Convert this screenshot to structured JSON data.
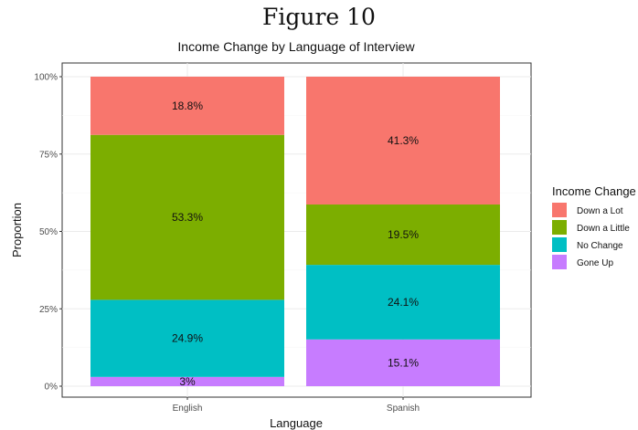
{
  "figure_heading": "Figure 10",
  "chart_data": {
    "type": "bar",
    "stacked": true,
    "title": "Income Change by Language of Interview",
    "xlabel": "Language",
    "ylabel": "Proportion",
    "categories": [
      "English",
      "Spanish"
    ],
    "ylim": [
      0,
      1
    ],
    "y_ticks": [
      0,
      0.25,
      0.5,
      0.75,
      1.0
    ],
    "y_tick_labels": [
      "0%",
      "25%",
      "50%",
      "75%",
      "100%"
    ],
    "grid": true,
    "legend": {
      "title": "Income Change",
      "placement": "right",
      "entries": [
        "Down a Lot",
        "Down a Little",
        "No Change",
        "Gone Up"
      ]
    },
    "series": [
      {
        "name": "Gone Up",
        "color": "#C77CFF",
        "values": [
          0.03,
          0.151
        ],
        "labels": [
          "3%",
          "15.1%"
        ]
      },
      {
        "name": "No Change",
        "color": "#00BFC4",
        "values": [
          0.249,
          0.241
        ],
        "labels": [
          "24.9%",
          "24.1%"
        ]
      },
      {
        "name": "Down a Little",
        "color": "#7CAE00",
        "values": [
          0.533,
          0.195
        ],
        "labels": [
          "53.3%",
          "19.5%"
        ]
      },
      {
        "name": "Down a Lot",
        "color": "#F8766D",
        "values": [
          0.188,
          0.413
        ],
        "labels": [
          "18.8%",
          "41.3%"
        ]
      }
    ],
    "legend_colors": {
      "Down a Lot": "#F8766D",
      "Down a Little": "#7CAE00",
      "No Change": "#00BFC4",
      "Gone Up": "#C77CFF"
    }
  }
}
